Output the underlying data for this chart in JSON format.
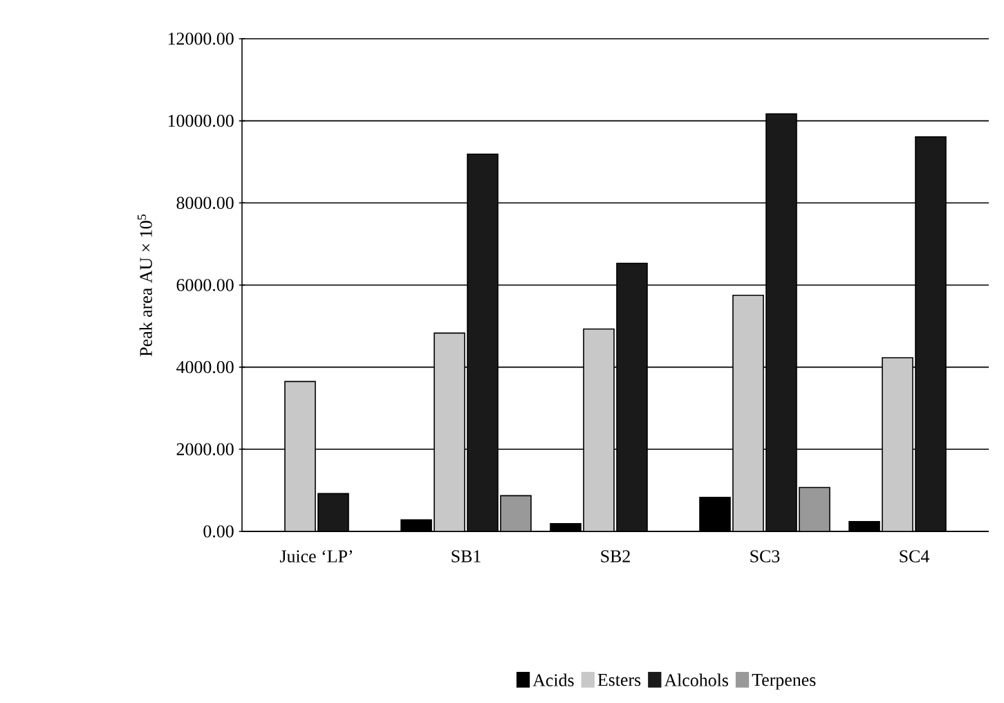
{
  "chart_data": {
    "type": "bar",
    "ylabel": "Peak area AU × 10$^{5}$",
    "categories": [
      "Juice ‘LP’",
      "SB1",
      "SB2",
      "SC3",
      "SC4"
    ],
    "series": [
      {
        "name": "Acids",
        "color": "#000000",
        "values": [
          null,
          280,
          190,
          830,
          240
        ]
      },
      {
        "name": "Esters",
        "color": "#c8c8c8",
        "values": [
          3650,
          4830,
          4930,
          5750,
          4230
        ]
      },
      {
        "name": "Alcohols",
        "color": "#1a1a1a",
        "values": [
          920,
          9190,
          6530,
          10170,
          9610
        ]
      },
      {
        "name": "Terpenes",
        "color": "#999999",
        "values": [
          null,
          870,
          null,
          1070,
          null
        ]
      }
    ],
    "ylim": [
      0,
      12000
    ],
    "yticks": [
      {
        "value": 0,
        "label": "0.00"
      },
      {
        "value": 2000,
        "label": "2000.00"
      },
      {
        "value": 4000,
        "label": "4000.00"
      },
      {
        "value": 6000,
        "label": "6000.00"
      },
      {
        "value": 8000,
        "label": "8000.00"
      },
      {
        "value": 10000,
        "label": "10000.00"
      },
      {
        "value": 12000,
        "label": "12000.00"
      }
    ],
    "grid": "y",
    "legend": "bottom"
  }
}
